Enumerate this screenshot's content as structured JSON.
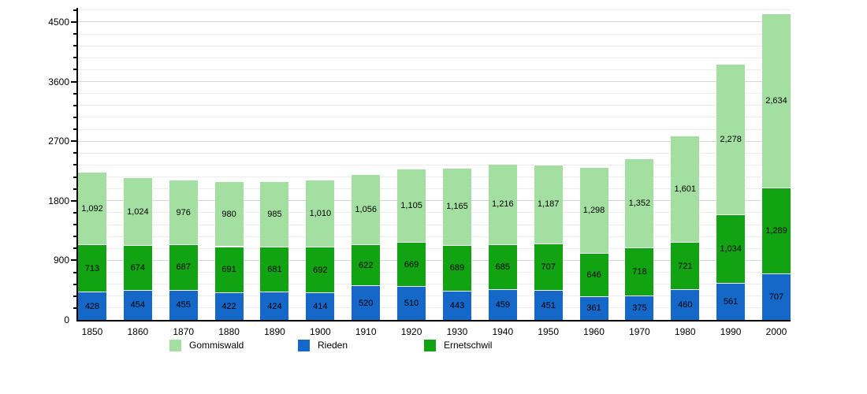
{
  "chart_data": {
    "type": "bar",
    "stacked": true,
    "title": "",
    "xlabel": "",
    "ylabel": "",
    "categories": [
      "1850",
      "1860",
      "1870",
      "1880",
      "1890",
      "1900",
      "1910",
      "1920",
      "1930",
      "1940",
      "1950",
      "1960",
      "1970",
      "1980",
      "1990",
      "2000"
    ],
    "series": [
      {
        "name": "Rieden",
        "color": "#1567C8",
        "values": [
          428,
          454,
          455,
          422,
          424,
          414,
          520,
          510,
          443,
          459,
          451,
          361,
          375,
          460,
          561,
          707
        ]
      },
      {
        "name": "Ernetschwil",
        "color": "#12A312",
        "values": [
          713,
          674,
          687,
          691,
          681,
          692,
          622,
          669,
          689,
          685,
          707,
          646,
          718,
          721,
          1034,
          1289
        ]
      },
      {
        "name": "Gommiswald",
        "color": "#A4DFA2",
        "values": [
          1092,
          1024,
          976,
          980,
          985,
          1010,
          1056,
          1105,
          1165,
          1216,
          1187,
          1298,
          1352,
          1601,
          2278,
          2634
        ]
      }
    ],
    "legend": [
      {
        "label": "Gommiswald",
        "color": "#A4DFA2",
        "left": 215
      },
      {
        "label": "Rieden",
        "color": "#1567C8",
        "left": 378
      },
      {
        "label": "Ernetschwil",
        "color": "#12A312",
        "left": 538
      }
    ],
    "legend_position": "bottom",
    "grid": true,
    "y_axis": {
      "ticks": [
        0,
        900,
        1800,
        2700,
        3600,
        4500
      ],
      "max": 4713,
      "minor_step": 180,
      "major_step": 900
    },
    "value_label_format": "thousands-comma"
  }
}
